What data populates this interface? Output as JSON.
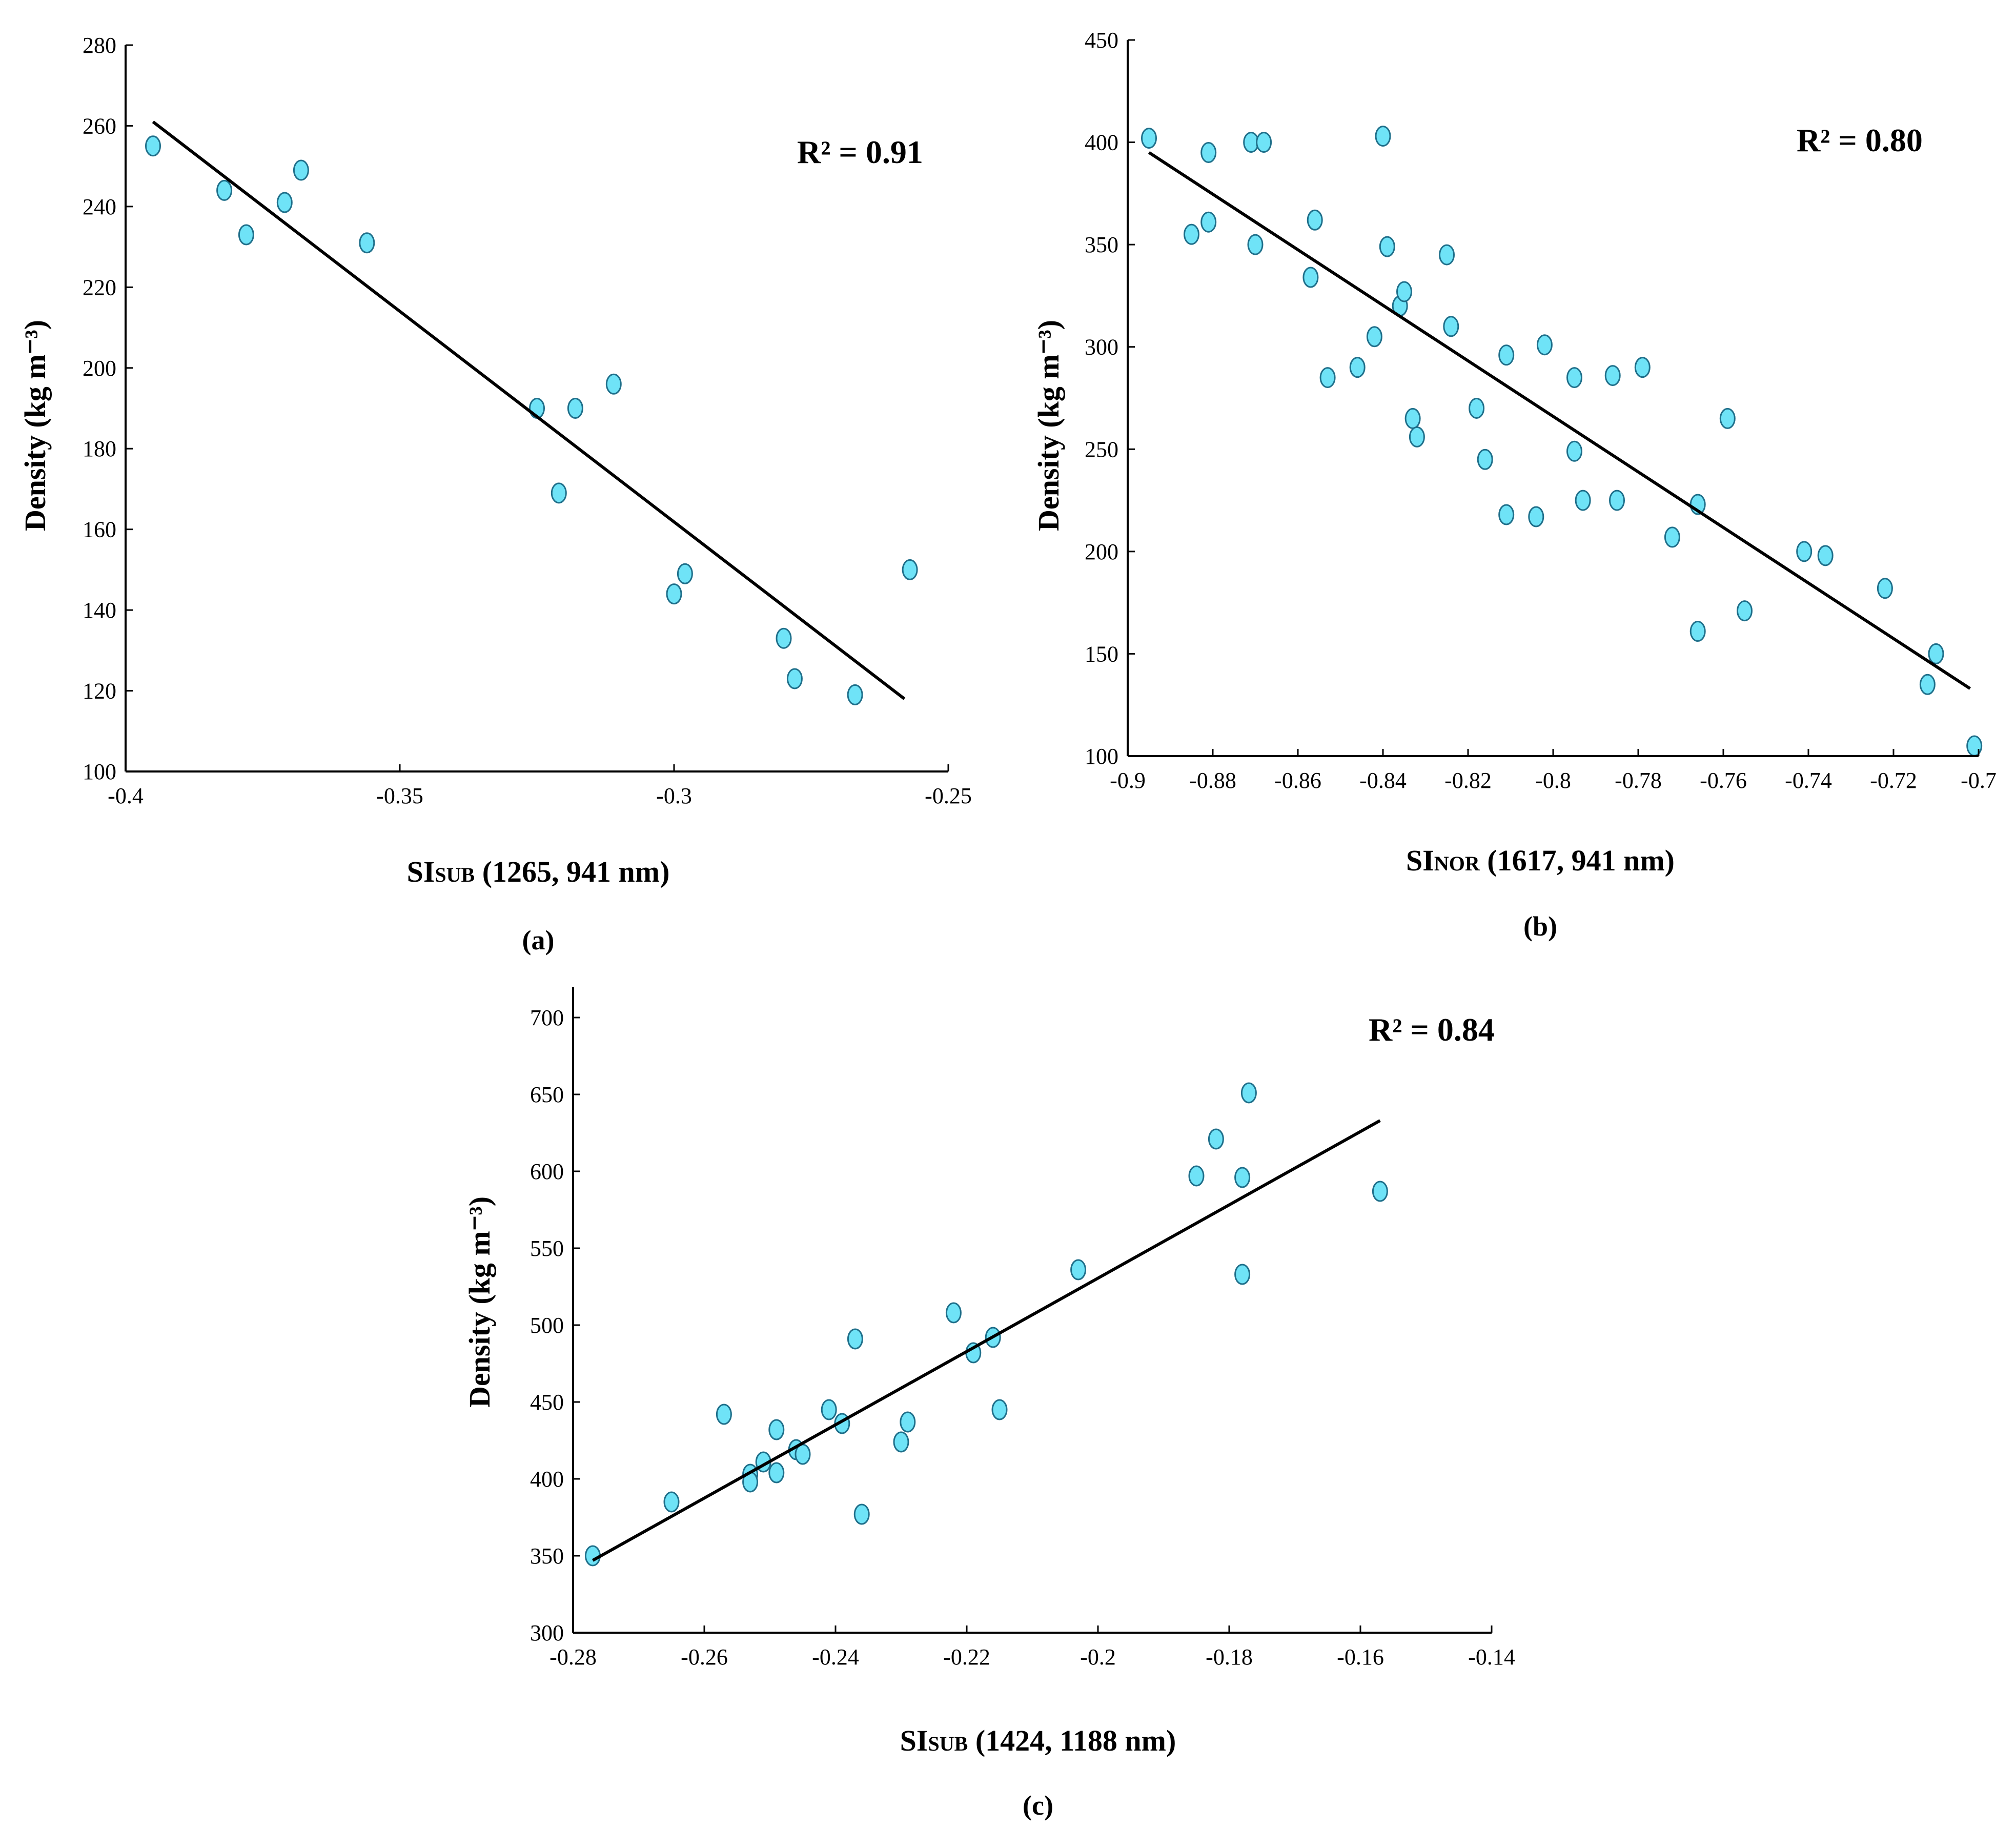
{
  "colors": {
    "point_fill": "#6fe3f7",
    "point_stroke": "#1f6f8a",
    "line": "#000000"
  },
  "chart_data": [
    {
      "id": "a",
      "type": "scatter",
      "panel_label": "(a)",
      "r2_label": "R² = 0.91",
      "ylabel": "Density (kg m⁻³)",
      "xlabel_main": "SI",
      "xlabel_sub": "SUB",
      "xlabel_rest": " (1265, 941 nm)",
      "xlim": [
        -0.4,
        -0.25
      ],
      "ylim": [
        100,
        280
      ],
      "xticks": [
        -0.4,
        -0.35,
        -0.3,
        -0.25
      ],
      "xtick_labels": [
        "-0.4",
        "-0.35",
        "-0.3",
        "-0.25"
      ],
      "yticks": [
        100,
        120,
        140,
        160,
        180,
        200,
        220,
        240,
        260,
        280
      ],
      "ytick_labels": [
        "100",
        "120",
        "140",
        "160",
        "180",
        "200",
        "220",
        "240",
        "260",
        "280"
      ],
      "points": [
        [
          -0.395,
          255
        ],
        [
          -0.382,
          244
        ],
        [
          -0.378,
          233
        ],
        [
          -0.371,
          241
        ],
        [
          -0.368,
          249
        ],
        [
          -0.356,
          231
        ],
        [
          -0.325,
          190
        ],
        [
          -0.321,
          169
        ],
        [
          -0.318,
          190
        ],
        [
          -0.311,
          196
        ],
        [
          -0.3,
          144
        ],
        [
          -0.298,
          149
        ],
        [
          -0.28,
          133
        ],
        [
          -0.278,
          123
        ],
        [
          -0.267,
          119
        ],
        [
          -0.257,
          150
        ]
      ],
      "fit_line": [
        [
          -0.395,
          261
        ],
        [
          -0.258,
          118
        ]
      ]
    },
    {
      "id": "b",
      "type": "scatter",
      "panel_label": "(b)",
      "r2_label": "R² = 0.80",
      "ylabel": "Density (kg m⁻³)",
      "xlabel_main": "SI",
      "xlabel_sub": "NOR",
      "xlabel_rest": " (1617, 941 nm)",
      "xlim": [
        -0.9,
        -0.7
      ],
      "ylim": [
        100,
        450
      ],
      "xticks": [
        -0.9,
        -0.88,
        -0.86,
        -0.84,
        -0.82,
        -0.8,
        -0.78,
        -0.76,
        -0.74,
        -0.72,
        -0.7
      ],
      "xtick_labels": [
        "-0.9",
        "-0.88",
        "-0.86",
        "-0.84",
        "-0.82",
        "-0.8",
        "-0.78",
        "-0.76",
        "-0.74",
        "-0.72",
        "-0.7"
      ],
      "yticks": [
        100,
        150,
        200,
        250,
        300,
        350,
        400,
        450
      ],
      "ytick_labels": [
        "100",
        "150",
        "200",
        "250",
        "300",
        "350",
        "400",
        "450"
      ],
      "points": [
        [
          -0.895,
          402
        ],
        [
          -0.885,
          355
        ],
        [
          -0.881,
          395
        ],
        [
          -0.881,
          361
        ],
        [
          -0.871,
          400
        ],
        [
          -0.87,
          350
        ],
        [
          -0.868,
          400
        ],
        [
          -0.857,
          334
        ],
        [
          -0.856,
          362
        ],
        [
          -0.853,
          285
        ],
        [
          -0.846,
          290
        ],
        [
          -0.842,
          305
        ],
        [
          -0.84,
          403
        ],
        [
          -0.839,
          349
        ],
        [
          -0.836,
          320
        ],
        [
          -0.835,
          327
        ],
        [
          -0.833,
          265
        ],
        [
          -0.832,
          256
        ],
        [
          -0.825,
          345
        ],
        [
          -0.824,
          310
        ],
        [
          -0.818,
          270
        ],
        [
          -0.816,
          245
        ],
        [
          -0.811,
          296
        ],
        [
          -0.811,
          218
        ],
        [
          -0.804,
          217
        ],
        [
          -0.802,
          301
        ],
        [
          -0.795,
          285
        ],
        [
          -0.795,
          249
        ],
        [
          -0.793,
          225
        ],
        [
          -0.786,
          286
        ],
        [
          -0.785,
          225
        ],
        [
          -0.779,
          290
        ],
        [
          -0.772,
          207
        ],
        [
          -0.766,
          223
        ],
        [
          -0.766,
          161
        ],
        [
          -0.759,
          265
        ],
        [
          -0.755,
          171
        ],
        [
          -0.741,
          200
        ],
        [
          -0.736,
          198
        ],
        [
          -0.722,
          182
        ],
        [
          -0.712,
          135
        ],
        [
          -0.71,
          150
        ],
        [
          -0.701,
          105
        ]
      ],
      "fit_line": [
        [
          -0.895,
          395
        ],
        [
          -0.702,
          133
        ]
      ]
    },
    {
      "id": "c",
      "type": "scatter",
      "panel_label": "(c)",
      "r2_label": "R² = 0.84",
      "ylabel": "Density (kg m⁻³)",
      "xlabel_main": "SI",
      "xlabel_sub": "SUB",
      "xlabel_rest": " (1424, 1188 nm)",
      "xlim": [
        -0.28,
        -0.14
      ],
      "ylim": [
        300,
        720
      ],
      "xticks": [
        -0.28,
        -0.26,
        -0.24,
        -0.22,
        -0.2,
        -0.18,
        -0.16,
        -0.14
      ],
      "xtick_labels": [
        "-0.28",
        "-0.26",
        "-0.24",
        "-0.22",
        "-0.2",
        "-0.18",
        "-0.16",
        "-0.14"
      ],
      "yticks": [
        300,
        350,
        400,
        450,
        500,
        550,
        600,
        650,
        700
      ],
      "ytick_labels": [
        "300",
        "350",
        "400",
        "450",
        "500",
        "550",
        "600",
        "650",
        "700"
      ],
      "points": [
        [
          -0.277,
          350
        ],
        [
          -0.265,
          385
        ],
        [
          -0.257,
          442
        ],
        [
          -0.253,
          403
        ],
        [
          -0.253,
          398
        ],
        [
          -0.251,
          411
        ],
        [
          -0.249,
          432
        ],
        [
          -0.249,
          404
        ],
        [
          -0.246,
          419
        ],
        [
          -0.245,
          416
        ],
        [
          -0.241,
          445
        ],
        [
          -0.239,
          436
        ],
        [
          -0.237,
          491
        ],
        [
          -0.236,
          377
        ],
        [
          -0.23,
          424
        ],
        [
          -0.229,
          437
        ],
        [
          -0.222,
          508
        ],
        [
          -0.219,
          482
        ],
        [
          -0.216,
          492
        ],
        [
          -0.215,
          445
        ],
        [
          -0.203,
          536
        ],
        [
          -0.185,
          597
        ],
        [
          -0.182,
          621
        ],
        [
          -0.178,
          596
        ],
        [
          -0.178,
          533
        ],
        [
          -0.177,
          651
        ],
        [
          -0.157,
          587
        ]
      ],
      "fit_line": [
        [
          -0.277,
          347
        ],
        [
          -0.157,
          633
        ]
      ]
    }
  ]
}
